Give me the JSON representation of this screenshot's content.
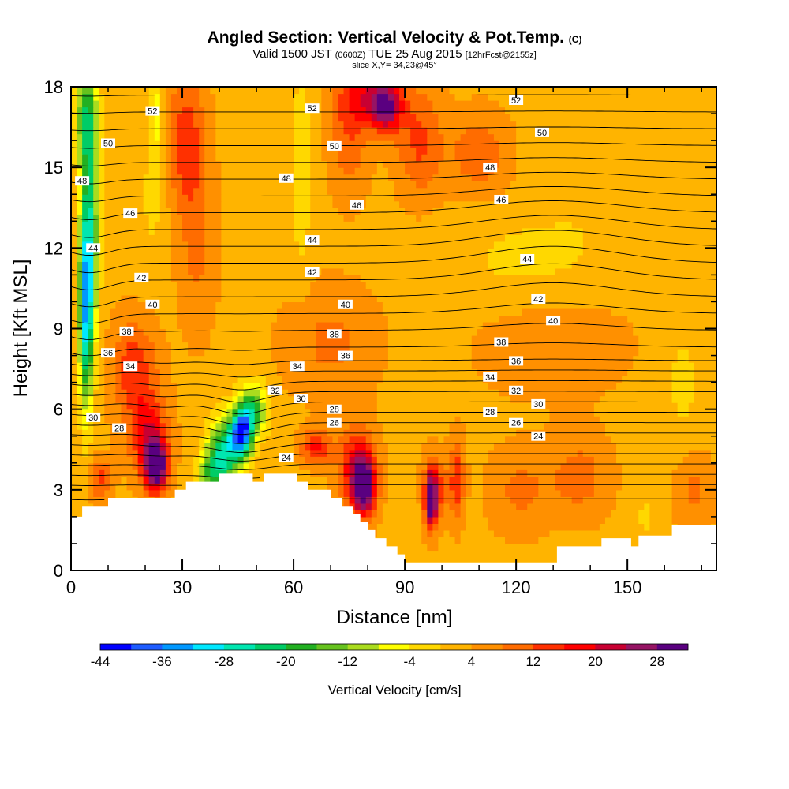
{
  "header": {
    "title_main": "Angled Section: Vertical Velocity & Pot.Temp.",
    "title_copy": "(C)",
    "valid_prefix": "Valid 1500 JST",
    "valid_zulu": "(0600Z)",
    "valid_date": "TUE 25 Aug 2015",
    "forecast": "[12hrFcst@2155z]",
    "slice": "slice X,Y= 34,23@45°"
  },
  "chart_data": {
    "type": "heatmap",
    "xlabel": "Distance [nm]",
    "ylabel": "Height [Kft MSL]",
    "xlim": [
      0,
      174
    ],
    "ylim": [
      0,
      18
    ],
    "x_ticks": [
      0,
      30,
      60,
      90,
      120,
      150
    ],
    "y_ticks": [
      0,
      3,
      6,
      9,
      12,
      15,
      18
    ],
    "colorbar": {
      "label": "Vertical Velocity [cm/s]",
      "tick_labels": [
        "-44",
        "-36",
        "-28",
        "-20",
        "-12",
        "-4",
        "4",
        "12",
        "20",
        "28"
      ],
      "levels": [
        -44,
        -40,
        -36,
        -32,
        -28,
        -24,
        -20,
        -16,
        -12,
        -8,
        -4,
        0,
        4,
        8,
        12,
        16,
        20,
        24,
        28,
        32
      ],
      "colors": [
        "#0000ff",
        "#1e5cff",
        "#0098ff",
        "#00e8ff",
        "#00e6b0",
        "#00cc66",
        "#22b022",
        "#66c21e",
        "#aadc1e",
        "#ffff00",
        "#ffd800",
        "#ffb400",
        "#ff9000",
        "#ff6c00",
        "#ff3000",
        "#ff0000",
        "#c80032",
        "#961464",
        "#5a0080"
      ]
    },
    "theta_contours": {
      "description": "Potential temperature isolines (C)",
      "labels": [
        {
          "x": 22,
          "y": 17.1,
          "v": "52"
        },
        {
          "x": 65,
          "y": 17.2,
          "v": "52"
        },
        {
          "x": 120,
          "y": 17.5,
          "v": "52"
        },
        {
          "x": 10,
          "y": 15.9,
          "v": "50"
        },
        {
          "x": 71,
          "y": 15.8,
          "v": "50"
        },
        {
          "x": 127,
          "y": 16.3,
          "v": "50"
        },
        {
          "x": 3,
          "y": 14.5,
          "v": "48"
        },
        {
          "x": 58,
          "y": 14.6,
          "v": "48"
        },
        {
          "x": 113,
          "y": 15.0,
          "v": "48"
        },
        {
          "x": 16,
          "y": 13.3,
          "v": "46"
        },
        {
          "x": 77,
          "y": 13.6,
          "v": "46"
        },
        {
          "x": 116,
          "y": 13.8,
          "v": "46"
        },
        {
          "x": 6,
          "y": 12.0,
          "v": "44"
        },
        {
          "x": 65,
          "y": 12.3,
          "v": "44"
        },
        {
          "x": 123,
          "y": 11.6,
          "v": "44"
        },
        {
          "x": 19,
          "y": 10.9,
          "v": "42"
        },
        {
          "x": 65,
          "y": 11.1,
          "v": "42"
        },
        {
          "x": 126,
          "y": 10.1,
          "v": "42"
        },
        {
          "x": 22,
          "y": 9.9,
          "v": "40"
        },
        {
          "x": 74,
          "y": 9.9,
          "v": "40"
        },
        {
          "x": 130,
          "y": 9.3,
          "v": "40"
        },
        {
          "x": 15,
          "y": 8.9,
          "v": "38"
        },
        {
          "x": 71,
          "y": 8.8,
          "v": "38"
        },
        {
          "x": 116,
          "y": 8.5,
          "v": "38"
        },
        {
          "x": 10,
          "y": 8.1,
          "v": "36"
        },
        {
          "x": 74,
          "y": 8.0,
          "v": "36"
        },
        {
          "x": 120,
          "y": 7.8,
          "v": "36"
        },
        {
          "x": 16,
          "y": 7.6,
          "v": "34"
        },
        {
          "x": 61,
          "y": 7.6,
          "v": "34"
        },
        {
          "x": 113,
          "y": 7.2,
          "v": "34"
        },
        {
          "x": 55,
          "y": 6.7,
          "v": "32"
        },
        {
          "x": 120,
          "y": 6.7,
          "v": "32"
        },
        {
          "x": 6,
          "y": 5.7,
          "v": "30"
        },
        {
          "x": 62,
          "y": 6.4,
          "v": "30"
        },
        {
          "x": 126,
          "y": 6.2,
          "v": "30"
        },
        {
          "x": 13,
          "y": 5.3,
          "v": "28"
        },
        {
          "x": 71,
          "y": 6.0,
          "v": "28"
        },
        {
          "x": 113,
          "y": 5.9,
          "v": "28"
        },
        {
          "x": 71,
          "y": 5.5,
          "v": "26"
        },
        {
          "x": 120,
          "y": 5.5,
          "v": "26"
        },
        {
          "x": 58,
          "y": 4.2,
          "v": "24"
        },
        {
          "x": 126,
          "y": 5.0,
          "v": "24"
        }
      ]
    },
    "velocity_features": [
      {
        "x": 4,
        "y": 9.5,
        "v": -28,
        "sx": 2,
        "sy": 3.5
      },
      {
        "x": 5,
        "y": 13,
        "v": -22,
        "sx": 2.5,
        "sy": 4
      },
      {
        "x": 4,
        "y": 17,
        "v": -18,
        "sx": 3,
        "sy": 2
      },
      {
        "x": 23,
        "y": 3.9,
        "v": 30,
        "sx": 3,
        "sy": 0.9
      },
      {
        "x": 21,
        "y": 5.0,
        "v": 16,
        "sx": 5,
        "sy": 1.5
      },
      {
        "x": 17,
        "y": 7.5,
        "v": 12,
        "sx": 6,
        "sy": 1.8
      },
      {
        "x": 8,
        "y": 3.4,
        "v": 10,
        "sx": 3,
        "sy": 0.8
      },
      {
        "x": 46,
        "y": 5.1,
        "v": -40,
        "sx": 3,
        "sy": 0.9
      },
      {
        "x": 41,
        "y": 4.3,
        "v": -28,
        "sx": 4,
        "sy": 1.3
      },
      {
        "x": 49,
        "y": 6.0,
        "v": -20,
        "sx": 4,
        "sy": 1.0
      },
      {
        "x": 37,
        "y": 3.6,
        "v": -14,
        "sx": 3,
        "sy": 0.8
      },
      {
        "x": 23,
        "y": 17,
        "v": -10,
        "sx": 1.5,
        "sy": 1.5
      },
      {
        "x": 22,
        "y": 14,
        "v": -4,
        "sx": 4,
        "sy": 3
      },
      {
        "x": 31,
        "y": 16,
        "v": 12,
        "sx": 5,
        "sy": 2.5
      },
      {
        "x": 34,
        "y": 12,
        "v": 6,
        "sx": 5,
        "sy": 3
      },
      {
        "x": 62,
        "y": 15,
        "v": -6,
        "sx": 3,
        "sy": 4
      },
      {
        "x": 75,
        "y": 16,
        "v": 8,
        "sx": 5,
        "sy": 2
      },
      {
        "x": 85,
        "y": 17.3,
        "v": 20,
        "sx": 4,
        "sy": 1.0
      },
      {
        "x": 80,
        "y": 17.6,
        "v": 14,
        "sx": 8,
        "sy": 1.0
      },
      {
        "x": 94,
        "y": 16,
        "v": 10,
        "sx": 6,
        "sy": 2
      },
      {
        "x": 79,
        "y": 3.1,
        "v": 26,
        "sx": 3,
        "sy": 1.0
      },
      {
        "x": 77,
        "y": 3.8,
        "v": 16,
        "sx": 5,
        "sy": 1.5
      },
      {
        "x": 66,
        "y": 4.6,
        "v": 14,
        "sx": 4,
        "sy": 0.6
      },
      {
        "x": 97,
        "y": 2.6,
        "v": 24,
        "sx": 1.5,
        "sy": 1.0
      },
      {
        "x": 98,
        "y": 3.0,
        "v": 14,
        "sx": 3,
        "sy": 1.2
      },
      {
        "x": 104,
        "y": 3.4,
        "v": 12,
        "sx": 2,
        "sy": 1.5
      },
      {
        "x": 92,
        "y": 2.5,
        "v": -2,
        "sx": 2,
        "sy": 1.0
      },
      {
        "x": 121,
        "y": 3.0,
        "v": 6,
        "sx": 8,
        "sy": 1.5
      },
      {
        "x": 137,
        "y": 3.5,
        "v": 7,
        "sx": 8,
        "sy": 1.5
      },
      {
        "x": 155,
        "y": 2.0,
        "v": -4,
        "sx": 3,
        "sy": 1.0
      },
      {
        "x": 168,
        "y": 3.0,
        "v": 6,
        "sx": 5,
        "sy": 1.5
      },
      {
        "x": 122,
        "y": 11.5,
        "v": -4,
        "sx": 20,
        "sy": 1.8
      },
      {
        "x": 140,
        "y": 14,
        "v": -2,
        "sx": 15,
        "sy": 3
      },
      {
        "x": 130,
        "y": 8.5,
        "v": 4,
        "sx": 20,
        "sy": 2
      },
      {
        "x": 165,
        "y": 7,
        "v": -4,
        "sx": 6,
        "sy": 2.5
      },
      {
        "x": 110,
        "y": 15.5,
        "v": 8,
        "sx": 8,
        "sy": 1.5
      },
      {
        "x": 70,
        "y": 8.5,
        "v": 6,
        "sx": 12,
        "sy": 2
      }
    ],
    "terrain": [
      [
        0,
        2.0
      ],
      [
        3,
        2.0
      ],
      [
        3,
        2.4
      ],
      [
        10,
        2.4
      ],
      [
        10,
        2.7
      ],
      [
        28,
        2.7
      ],
      [
        28,
        3.0
      ],
      [
        31,
        3.0
      ],
      [
        31,
        3.3
      ],
      [
        40,
        3.3
      ],
      [
        40,
        3.6
      ],
      [
        49,
        3.6
      ],
      [
        49,
        3.3
      ],
      [
        52,
        3.3
      ],
      [
        52,
        3.6
      ],
      [
        61,
        3.6
      ],
      [
        61,
        3.3
      ],
      [
        64,
        3.3
      ],
      [
        64,
        3.0
      ],
      [
        70,
        3.0
      ],
      [
        70,
        2.7
      ],
      [
        73,
        2.7
      ],
      [
        73,
        2.4
      ],
      [
        76,
        2.4
      ],
      [
        76,
        2.1
      ],
      [
        78,
        2.1
      ],
      [
        78,
        1.8
      ],
      [
        80,
        1.8
      ],
      [
        80,
        1.5
      ],
      [
        82,
        1.5
      ],
      [
        82,
        1.2
      ],
      [
        85,
        1.2
      ],
      [
        85,
        0.9
      ],
      [
        88,
        0.9
      ],
      [
        88,
        0.6
      ],
      [
        90,
        0.6
      ],
      [
        90,
        0.3
      ],
      [
        131,
        0.3
      ],
      [
        131,
        0.9
      ],
      [
        143,
        0.9
      ],
      [
        143,
        1.2
      ],
      [
        151,
        1.2
      ],
      [
        151,
        0.9
      ],
      [
        153,
        0.9
      ],
      [
        153,
        1.3
      ],
      [
        162,
        1.3
      ],
      [
        162,
        1.7
      ],
      [
        174,
        1.7
      ]
    ]
  }
}
